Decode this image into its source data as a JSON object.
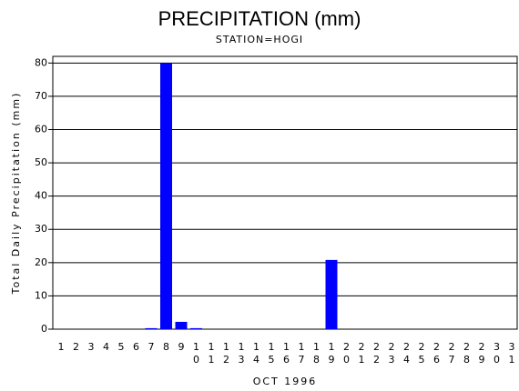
{
  "chart_data": {
    "type": "bar",
    "title": "PRECIPITATION (mm)",
    "subtitle": "STATION=HOGI",
    "x_label": "OCT 1996",
    "y_label": "Total Daily Precipitation (mm)",
    "categories": [
      "1",
      "2",
      "3",
      "4",
      "5",
      "6",
      "7",
      "8",
      "9",
      "10",
      "11",
      "12",
      "13",
      "14",
      "15",
      "16",
      "17",
      "18",
      "19",
      "20",
      "21",
      "22",
      "23",
      "24",
      "25",
      "26",
      "27",
      "28",
      "29",
      "30",
      "31"
    ],
    "values": [
      0,
      0,
      0,
      0,
      0,
      0,
      0.3,
      80,
      2.2,
      0.3,
      0,
      0,
      0,
      0,
      0,
      0,
      0,
      0,
      20.8,
      0,
      0,
      0,
      0,
      0,
      0,
      0,
      0,
      0,
      0,
      0,
      0
    ],
    "color": "#0000ff",
    "ylim": [
      0,
      82
    ],
    "yticks": [
      0,
      10,
      20,
      30,
      40,
      50,
      60,
      70,
      80
    ],
    "grid": true
  }
}
